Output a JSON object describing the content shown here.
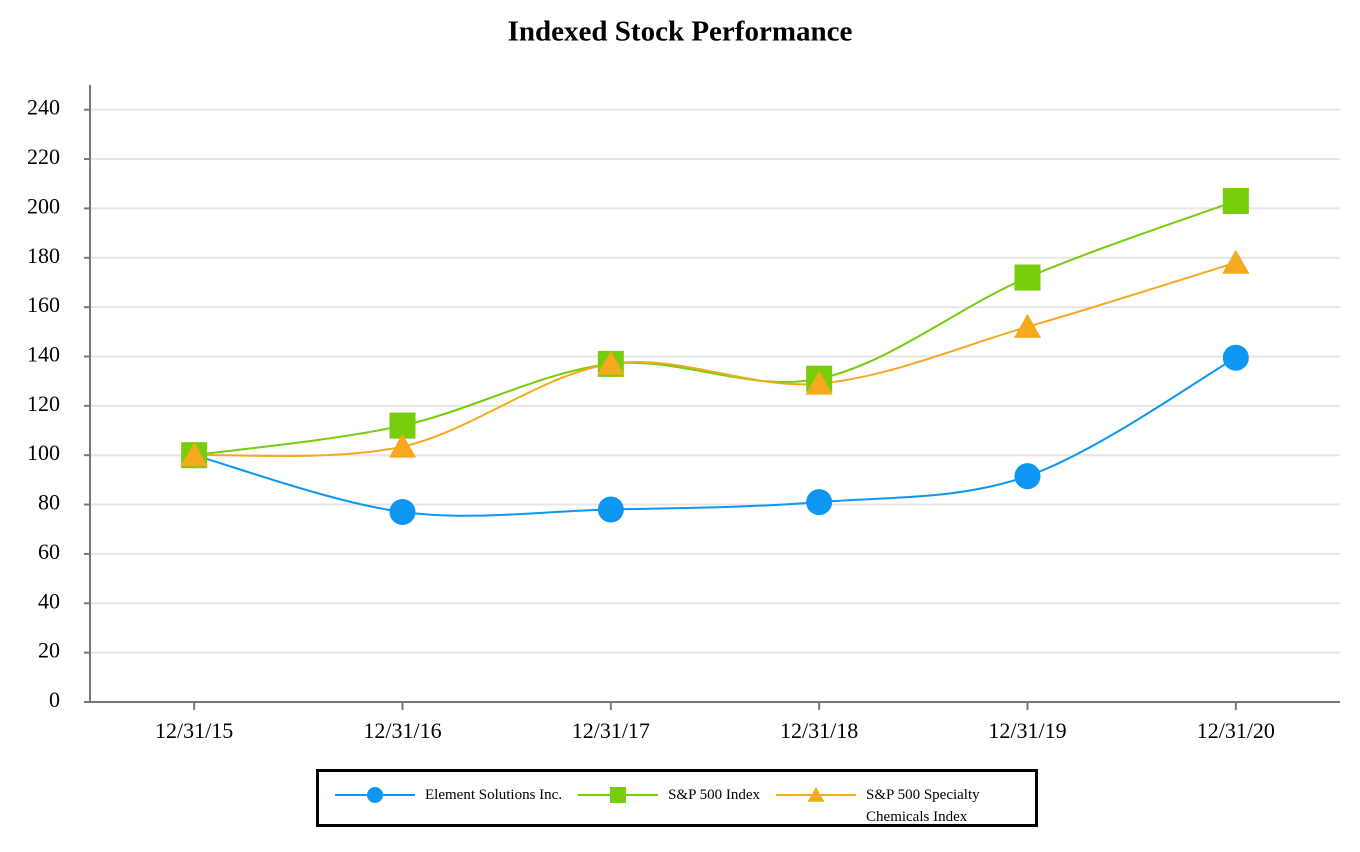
{
  "chart_data": {
    "type": "line",
    "title": "Indexed Stock Performance",
    "categories": [
      "12/31/15",
      "12/31/16",
      "12/31/17",
      "12/31/18",
      "12/31/19",
      "12/31/20"
    ],
    "series": [
      {
        "name": "Element Solutions Inc.",
        "color": "#0d96f2",
        "marker": "circle",
        "values": [
          100,
          77,
          78,
          81,
          91.5,
          139.5
        ]
      },
      {
        "name": "S&P 500 Index",
        "color": "#77cc0c",
        "marker": "square",
        "values": [
          100,
          112,
          137,
          131,
          172,
          203
        ]
      },
      {
        "name": "S&P 500 Specialty Chemicals Index",
        "color": "#f5a91e",
        "marker": "triangle",
        "values": [
          100,
          103.5,
          137,
          129,
          152,
          178
        ]
      }
    ],
    "ylim": [
      0,
      250
    ],
    "yticks": [
      0,
      20,
      40,
      60,
      80,
      100,
      120,
      140,
      160,
      180,
      200,
      220,
      240
    ],
    "grid": true
  }
}
